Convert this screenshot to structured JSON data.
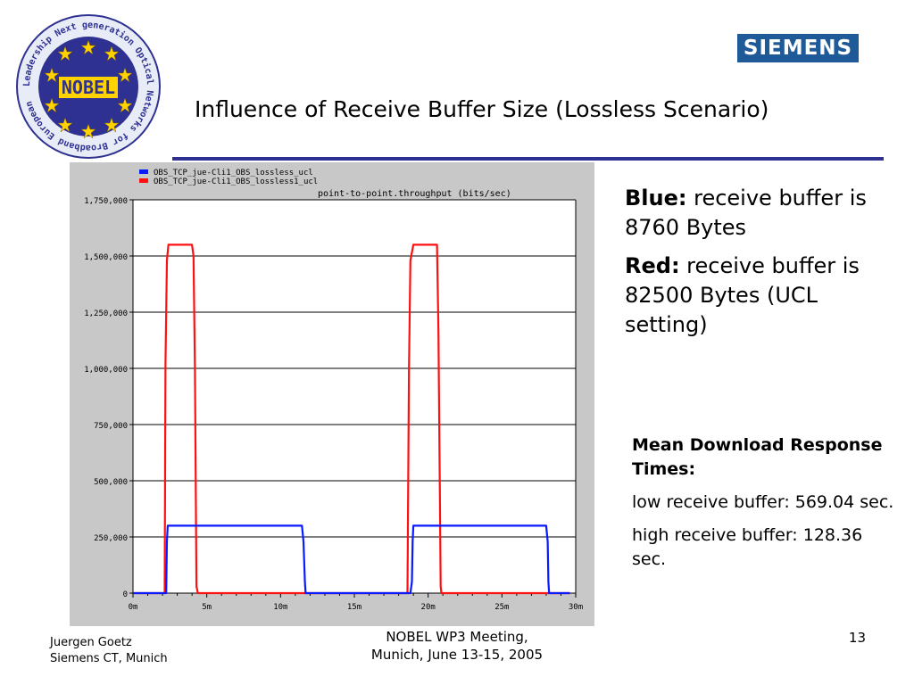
{
  "slide": {
    "title": "Influence of Receive Buffer Size (Lossless Scenario)",
    "brand": "SIEMENS",
    "logo": {
      "ring_text": "Leadership Next generation Optical Networks for Broadband European",
      "center_text": "NOBEL"
    },
    "notes": [
      {
        "label": "Blue:",
        "text": " receive buffer is 8760 Bytes"
      },
      {
        "label": "Red:",
        "text": " receive buffer is 82500 Bytes (UCL setting)"
      }
    ],
    "mean": {
      "heading": "Mean Download Response Times:",
      "low": "low receive buffer: 569.04 sec.",
      "high": "high receive buffer: 128.36 sec."
    },
    "footer": {
      "author": "Juergen Goetz",
      "org": "Siemens CT, Munich",
      "meeting_line1": "NOBEL WP3 Meeting,",
      "meeting_line2": "Munich, June 13-15, 2005",
      "page": "13"
    }
  },
  "colors": {
    "blue_series": "#0a1aff",
    "red_series": "#ff1010",
    "rule": "#2e3192",
    "brand_bg": "#1f5a98"
  },
  "chart_data": {
    "type": "line",
    "title": "point-to-point.throughput (bits/sec)",
    "x_unit": "minutes",
    "xlim": [
      0,
      30
    ],
    "ylim": [
      0,
      1750000
    ],
    "x_ticks": [
      0,
      5,
      10,
      15,
      20,
      25,
      30
    ],
    "x_tick_labels": [
      "0m",
      "5m",
      "10m",
      "15m",
      "20m",
      "25m",
      "30m"
    ],
    "y_ticks": [
      0,
      250000,
      500000,
      750000,
      1000000,
      1250000,
      1500000,
      1750000
    ],
    "y_tick_labels": [
      "0",
      "250,000",
      "500,000",
      "750,000",
      "1,000,000",
      "1,250,000",
      "1,500,000",
      "1,750,000"
    ],
    "grid": true,
    "legend_position": "top-left",
    "series": [
      {
        "name": "OBS_TCP_jue-Cli1_OBS_lossless_ucl",
        "color": "#0a1aff",
        "x": [
          0,
          2.25,
          2.3,
          2.35,
          11.45,
          11.55,
          11.65,
          11.7,
          18.8,
          18.9,
          18.95,
          19.0,
          28.0,
          28.1,
          28.15,
          28.2,
          29.6
        ],
        "y": [
          0,
          0,
          230000,
          300000,
          300000,
          230000,
          50000,
          0,
          0,
          50000,
          230000,
          300000,
          300000,
          230000,
          50000,
          0,
          0
        ]
      },
      {
        "name": "OBS_TCP_jue-Cli1_OBS_lossless1_ucl",
        "color": "#ff1010",
        "x": [
          0,
          2.15,
          2.2,
          2.3,
          2.4,
          4.0,
          4.1,
          4.2,
          4.3,
          4.4,
          18.6,
          18.7,
          18.8,
          19.0,
          20.6,
          20.7,
          20.8,
          20.85,
          20.9,
          29.6
        ],
        "y": [
          0,
          0,
          1020000,
          1480000,
          1550000,
          1550000,
          1500000,
          1000000,
          30000,
          0,
          0,
          1000000,
          1480000,
          1550000,
          1550000,
          1170000,
          400000,
          30000,
          0,
          0
        ]
      }
    ]
  }
}
